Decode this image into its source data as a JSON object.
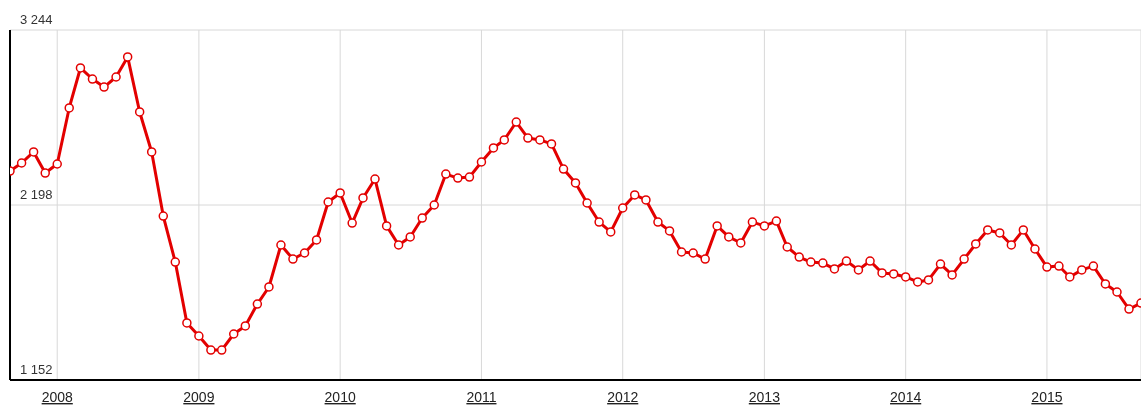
{
  "chart_data": {
    "type": "line",
    "x": [
      "2007-09",
      "2007-10",
      "2007-11",
      "2007-12",
      "2008-01",
      "2008-02",
      "2008-03",
      "2008-04",
      "2008-05",
      "2008-06",
      "2008-07",
      "2008-08",
      "2008-09",
      "2008-10",
      "2008-11",
      "2008-12",
      "2009-01",
      "2009-02",
      "2009-03",
      "2009-04",
      "2009-05",
      "2009-06",
      "2009-07",
      "2009-08",
      "2009-09",
      "2009-10",
      "2009-11",
      "2009-12",
      "2010-01",
      "2010-02",
      "2010-03",
      "2010-04",
      "2010-05",
      "2010-06",
      "2010-07",
      "2010-08",
      "2010-09",
      "2010-10",
      "2010-11",
      "2010-12",
      "2011-01",
      "2011-02",
      "2011-03",
      "2011-04",
      "2011-05",
      "2011-06",
      "2011-07",
      "2011-08",
      "2011-09",
      "2011-10",
      "2011-11",
      "2011-12",
      "2012-01",
      "2012-02",
      "2012-03",
      "2012-04",
      "2012-05",
      "2012-06",
      "2012-07",
      "2012-08",
      "2012-09",
      "2012-10",
      "2012-11",
      "2012-12",
      "2013-01",
      "2013-02",
      "2013-03",
      "2013-04",
      "2013-05",
      "2013-06",
      "2013-07",
      "2013-08",
      "2013-09",
      "2013-10",
      "2013-11",
      "2013-12",
      "2014-01",
      "2014-02",
      "2014-03",
      "2014-04",
      "2014-05",
      "2014-06",
      "2014-07",
      "2014-08",
      "2014-09",
      "2014-10",
      "2014-11",
      "2014-12",
      "2015-01",
      "2015-02",
      "2015-03",
      "2015-04",
      "2015-05",
      "2015-06",
      "2015-07",
      "2015-08",
      "2015-09"
    ],
    "series": [
      {
        "color": "#e30000",
        "values": [
          2401,
          2449,
          2515,
          2389,
          2443,
          2778,
          3017,
          2951,
          2903,
          2963,
          3083,
          2754,
          2515,
          2132,
          1857,
          1493,
          1415,
          1331,
          1331,
          1427,
          1475,
          1606,
          1708,
          1959,
          1875,
          1911,
          1989,
          2216,
          2270,
          2090,
          2240,
          2353,
          2073,
          1959,
          2007,
          2120,
          2198,
          2383,
          2359,
          2365,
          2455,
          2539,
          2587,
          2694,
          2598,
          2587,
          2563,
          2413,
          2330,
          2210,
          2096,
          2037,
          2180,
          2258,
          2228,
          2096,
          2043,
          1917,
          1911,
          1875,
          2073,
          2007,
          1971,
          2096,
          2073,
          2102,
          1947,
          1887,
          1857,
          1851,
          1816,
          1863,
          1810,
          1863,
          1792,
          1786,
          1768,
          1738,
          1750,
          1845,
          1780,
          1875,
          1965,
          2049,
          2031,
          1959,
          2049,
          1935,
          1827,
          1833,
          1768,
          1810,
          1833,
          1726,
          1678,
          1576,
          1612
        ]
      }
    ],
    "xlim": [
      "2007-09",
      "2015-09"
    ],
    "xticks": [
      "2008",
      "2009",
      "2010",
      "2011",
      "2012",
      "2013",
      "2014",
      "2015"
    ],
    "ylim": [
      1152,
      3244
    ],
    "yticks": [
      {
        "value": 1152,
        "label": "1 152"
      },
      {
        "value": 2198,
        "label": "2 198"
      },
      {
        "value": 3244,
        "label": "3 244"
      }
    ],
    "grid": true,
    "marker": "circle",
    "line_style": "solid"
  }
}
